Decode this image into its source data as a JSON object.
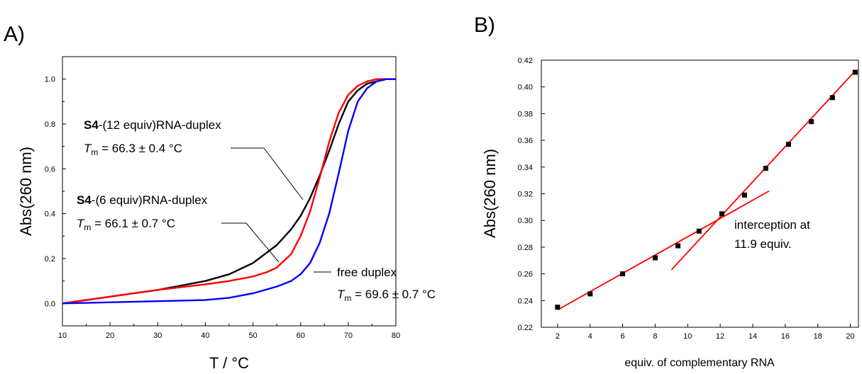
{
  "panels": {
    "a": {
      "label": "A)"
    },
    "b": {
      "label": "B)"
    }
  },
  "chart_data": [
    {
      "type": "line",
      "panel": "A)",
      "title": "",
      "xlabel": "T / °C",
      "ylabel": "Abs(260 nm)",
      "xlim": [
        10,
        80
      ],
      "ylim": [
        -0.1,
        1.1
      ],
      "x_ticks": [
        10,
        20,
        30,
        40,
        50,
        60,
        70,
        80
      ],
      "y_ticks": [
        0.0,
        0.2,
        0.4,
        0.6,
        0.8,
        1.0
      ],
      "x_tick_labels": [
        "10",
        "20",
        "30",
        "40",
        "50",
        "60",
        "70",
        "80"
      ],
      "y_tick_labels": [
        "0.0",
        "0.2",
        "0.4",
        "0.6",
        "0.8",
        "1.0"
      ],
      "grid": false,
      "series": [
        {
          "color": "#000000",
          "x": [
            10,
            20,
            30,
            35,
            40,
            45,
            50,
            55,
            58,
            60,
            62,
            64,
            66,
            68,
            70,
            72,
            74,
            76,
            78,
            80
          ],
          "y": [
            0.0,
            0.03,
            0.06,
            0.08,
            0.1,
            0.13,
            0.18,
            0.26,
            0.33,
            0.39,
            0.47,
            0.57,
            0.68,
            0.8,
            0.9,
            0.95,
            0.98,
            0.99,
            1.0,
            1.0
          ]
        },
        {
          "color": "#ff0000",
          "x": [
            10,
            20,
            30,
            40,
            45,
            50,
            53,
            55,
            58,
            60,
            62,
            64,
            66,
            68,
            70,
            72,
            74,
            76,
            78,
            80
          ],
          "y": [
            0.0,
            0.03,
            0.06,
            0.085,
            0.1,
            0.12,
            0.14,
            0.16,
            0.22,
            0.3,
            0.41,
            0.56,
            0.72,
            0.85,
            0.93,
            0.97,
            0.99,
            1.0,
            1.0,
            1.0
          ]
        },
        {
          "color": "#0000ff",
          "x": [
            10,
            20,
            30,
            40,
            45,
            50,
            55,
            58,
            60,
            62,
            64,
            66,
            68,
            70,
            72,
            74,
            76,
            78,
            80
          ],
          "y": [
            0.0,
            0.005,
            0.01,
            0.015,
            0.025,
            0.045,
            0.075,
            0.1,
            0.13,
            0.18,
            0.27,
            0.4,
            0.58,
            0.77,
            0.9,
            0.96,
            0.99,
            1.0,
            1.0
          ]
        }
      ],
      "annotations": [
        {
          "bold": "S4",
          "text": "-(12 equiv)RNA-duplex",
          "tm_symbol": "T",
          "tm_sub": "m",
          "tm_value": " = 66.3 ± 0.4 °C"
        },
        {
          "bold": "S4",
          "text": "-(6 equiv)RNA-duplex",
          "tm_symbol": "T",
          "tm_sub": "m",
          "tm_value": " = 66.1 ± 0.7 °C"
        },
        {
          "bold": "",
          "text": "free duplex",
          "tm_symbol": "T",
          "tm_sub": "m",
          "tm_value": " = 69.6 ± 0.7 °C"
        }
      ]
    },
    {
      "type": "scatter",
      "panel": "B)",
      "title": "",
      "xlabel": "equiv. of complementary RNA",
      "ylabel": "Abs(260 nm)",
      "xlim": [
        1,
        20.5
      ],
      "ylim": [
        0.22,
        0.42
      ],
      "x_ticks": [
        2,
        4,
        6,
        8,
        10,
        12,
        14,
        16,
        18,
        20
      ],
      "y_ticks": [
        0.22,
        0.24,
        0.26,
        0.28,
        0.3,
        0.32,
        0.34,
        0.36,
        0.38,
        0.4,
        0.42
      ],
      "x_tick_labels": [
        "2",
        "4",
        "6",
        "8",
        "10",
        "12",
        "14",
        "16",
        "18",
        "20"
      ],
      "y_tick_labels": [
        "0.22",
        "0.24",
        "0.26",
        "0.28",
        "0.30",
        "0.32",
        "0.34",
        "0.36",
        "0.38",
        "0.40",
        "0.42"
      ],
      "grid": false,
      "points": {
        "color": "#000000",
        "x": [
          2.0,
          4.0,
          6.0,
          8.0,
          9.4,
          10.7,
          12.1,
          13.5,
          14.8,
          16.2,
          17.6,
          18.9,
          20.3
        ],
        "y": [
          0.235,
          0.245,
          0.26,
          0.272,
          0.281,
          0.292,
          0.305,
          0.319,
          0.339,
          0.357,
          0.374,
          0.392,
          0.411
        ]
      },
      "fit_lines": [
        {
          "color": "#ff0000",
          "x": [
            2.0,
            15.0
          ],
          "y": [
            0.233,
            0.322
          ]
        },
        {
          "color": "#ff0000",
          "x": [
            9.0,
            20.3
          ],
          "y": [
            0.263,
            0.412
          ]
        }
      ],
      "annotation": {
        "line1": "interception at",
        "line2": "11.9 equiv."
      }
    }
  ]
}
